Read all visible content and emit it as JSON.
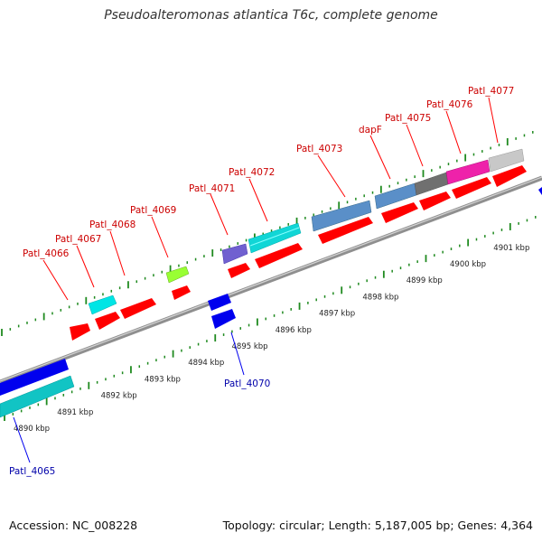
{
  "title": "Pseudoalteromonas atlantica T6c, complete genome",
  "footer": {
    "accession": "Accession: NC_008228",
    "summary": "Topology: circular; Length: 5,187,005 bp; Genes: 4,364"
  },
  "colors": {
    "backbone": "#8f8f8f",
    "tick": "#1f8a1f",
    "forward_label": "#cc0000",
    "reverse_label": "#0000aa",
    "cds": "#ff0000"
  },
  "kbp_labels": [
    {
      "label": "4890 kbp",
      "kbp": 4890
    },
    {
      "label": "4891 kbp",
      "kbp": 4891
    },
    {
      "label": "4892 kbp",
      "kbp": 4892
    },
    {
      "label": "4893 kbp",
      "kbp": 4893
    },
    {
      "label": "4894 kbp",
      "kbp": 4894
    },
    {
      "label": "4895 kbp",
      "kbp": 4895
    },
    {
      "label": "4896 kbp",
      "kbp": 4896
    },
    {
      "label": "4897 kbp",
      "kbp": 4897
    },
    {
      "label": "4898 kbp",
      "kbp": 4898
    },
    {
      "label": "4899 kbp",
      "kbp": 4899
    },
    {
      "label": "4900 kbp",
      "kbp": 4900
    },
    {
      "label": "4901 kbp",
      "kbp": 4901
    }
  ],
  "gene_labels": [
    {
      "name": "Patl_4065",
      "strand": "reverse"
    },
    {
      "name": "Patl_4066",
      "strand": "forward"
    },
    {
      "name": "Patl_4067",
      "strand": "forward"
    },
    {
      "name": "Patl_4068",
      "strand": "forward"
    },
    {
      "name": "Patl_4069",
      "strand": "forward"
    },
    {
      "name": "Patl_4070",
      "strand": "reverse"
    },
    {
      "name": "Patl_4071",
      "strand": "forward"
    },
    {
      "name": "Patl_4072",
      "strand": "forward"
    },
    {
      "name": "Patl_4073",
      "strand": "forward"
    },
    {
      "name": "dapF",
      "strand": "forward"
    },
    {
      "name": "Patl_4075",
      "strand": "forward"
    },
    {
      "name": "Patl_4076",
      "strand": "forward"
    },
    {
      "name": "Patl_4077",
      "strand": "forward"
    }
  ]
}
